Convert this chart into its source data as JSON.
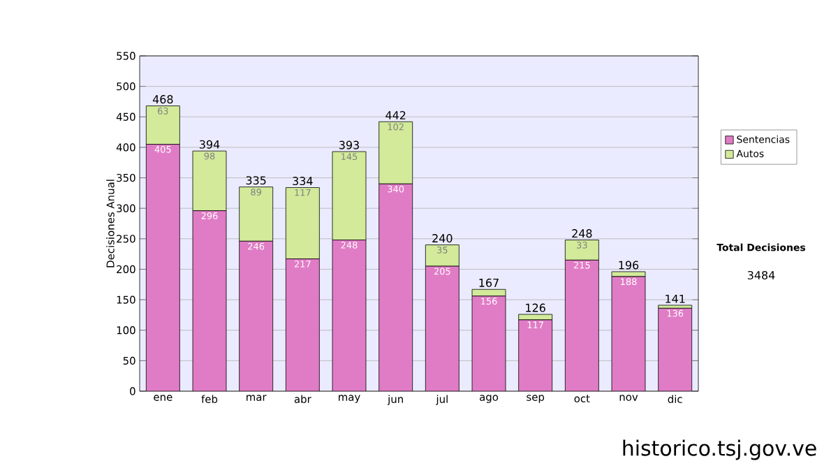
{
  "chart_data": {
    "type": "bar",
    "stacked": true,
    "ylabel": "Decisiones Anual",
    "categories": [
      "ene",
      "feb",
      "mar",
      "abr",
      "may",
      "jun",
      "jul",
      "ago",
      "sep",
      "oct",
      "nov",
      "dic"
    ],
    "series": [
      {
        "name": "Sentencias",
        "color": "#e07cc5",
        "values": [
          405,
          296,
          246,
          217,
          248,
          340,
          205,
          156,
          117,
          215,
          188,
          136
        ],
        "value_labels": [
          "405",
          "296",
          "246",
          "217",
          "248",
          "340",
          "205",
          "156",
          "117",
          "215",
          "188",
          "136"
        ]
      },
      {
        "name": "Autos",
        "color": "#d2ea9a",
        "values": [
          63,
          98,
          89,
          117,
          145,
          102,
          35,
          11,
          9,
          33,
          8,
          5
        ],
        "value_labels": [
          "63",
          "98",
          "89",
          "117",
          "145",
          "102",
          "35",
          null,
          null,
          "33",
          null,
          null
        ]
      }
    ],
    "totals": [
      "468",
      "394",
      "335",
      "334",
      "393",
      "442",
      "240",
      "167",
      "126",
      "248",
      "196",
      "141"
    ],
    "ylim": [
      0,
      550
    ],
    "yticks": [
      0,
      50,
      100,
      150,
      200,
      250,
      300,
      350,
      400,
      450,
      500,
      550
    ],
    "grid": "y",
    "legend": "right",
    "annotations": [
      "Total Decisiones",
      "3484",
      "historico.tsj.gov.ve"
    ]
  }
}
